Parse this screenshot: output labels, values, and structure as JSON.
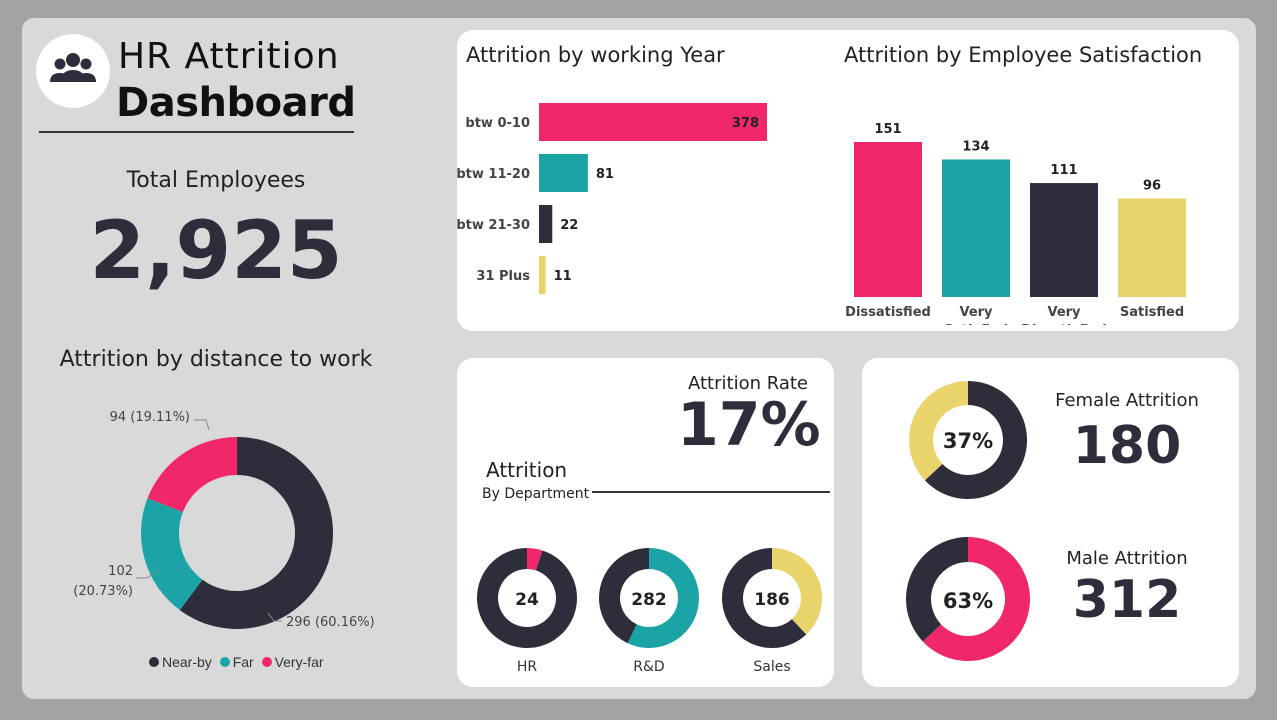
{
  "header": {
    "title_line1": "HR Attrition",
    "title_line2": "Dashboard",
    "logo_icon": "people-group-icon"
  },
  "total_employees": {
    "label": "Total Employees",
    "value": "2,925"
  },
  "attrition_rate": {
    "label": "Attrition Rate",
    "value": "17%"
  },
  "department_section": {
    "title": "Attrition",
    "subtitle": "By Department"
  },
  "female": {
    "label": "Female Attrition",
    "value": "180",
    "percent_label": "37%"
  },
  "male": {
    "label": "Male Attrition",
    "value": "312",
    "percent_label": "63%"
  },
  "colors": {
    "pink": "#f0286a",
    "teal": "#1ca3a6",
    "navy": "#2d2d3c",
    "yellow": "#e9d36b"
  },
  "chart_data": [
    {
      "type": "bar",
      "orientation": "horizontal",
      "title": "Attrition by working Year",
      "categories": [
        "btw 0-10",
        "btw 11-20",
        "btw 21-30",
        "31 Plus"
      ],
      "values": [
        378,
        81,
        22,
        11
      ],
      "colors": [
        "#f0286a",
        "#1ca3a6",
        "#2d2d3c",
        "#e9d36b"
      ]
    },
    {
      "type": "bar",
      "title": "Attrition by Employee Satisfaction",
      "categories": [
        "Dissatisfied",
        "Very Satisfied",
        "Very Dissatisfied",
        "Satisfied"
      ],
      "values": [
        151,
        134,
        111,
        96
      ],
      "colors": [
        "#f0286a",
        "#1ca3a6",
        "#2d2d3c",
        "#e9d36b"
      ]
    },
    {
      "type": "pie",
      "donut": true,
      "title": "Attrition by distance to work",
      "categories": [
        "Near-by",
        "Far",
        "Very-far"
      ],
      "values": [
        296,
        102,
        94
      ],
      "labels": [
        "296 (60.16%)",
        "102 (20.73%)",
        "94 (19.11%)"
      ],
      "colors": [
        "#2d2d3c",
        "#1ca3a6",
        "#f0286a"
      ],
      "legend": "bottom"
    },
    {
      "type": "pie",
      "donut": true,
      "title": "HR",
      "center_label": "24",
      "values": [
        0.05,
        0.95
      ],
      "colors": [
        "#f0286a",
        "#2d2d3c"
      ]
    },
    {
      "type": "pie",
      "donut": true,
      "title": "R&D",
      "center_label": "282",
      "values": [
        0.57,
        0.43
      ],
      "colors": [
        "#1ca3a6",
        "#2d2d3c"
      ]
    },
    {
      "type": "pie",
      "donut": true,
      "title": "Sales",
      "center_label": "186",
      "values": [
        0.38,
        0.62
      ],
      "colors": [
        "#e9d36b",
        "#2d2d3c"
      ]
    },
    {
      "type": "pie",
      "donut": true,
      "center_label": "37%",
      "values": [
        0.37,
        0.63
      ],
      "colors": [
        "#e9d36b",
        "#2d2d3c"
      ]
    },
    {
      "type": "pie",
      "donut": true,
      "center_label": "63%",
      "values": [
        0.63,
        0.37
      ],
      "colors": [
        "#f0286a",
        "#2d2d3c"
      ]
    }
  ]
}
